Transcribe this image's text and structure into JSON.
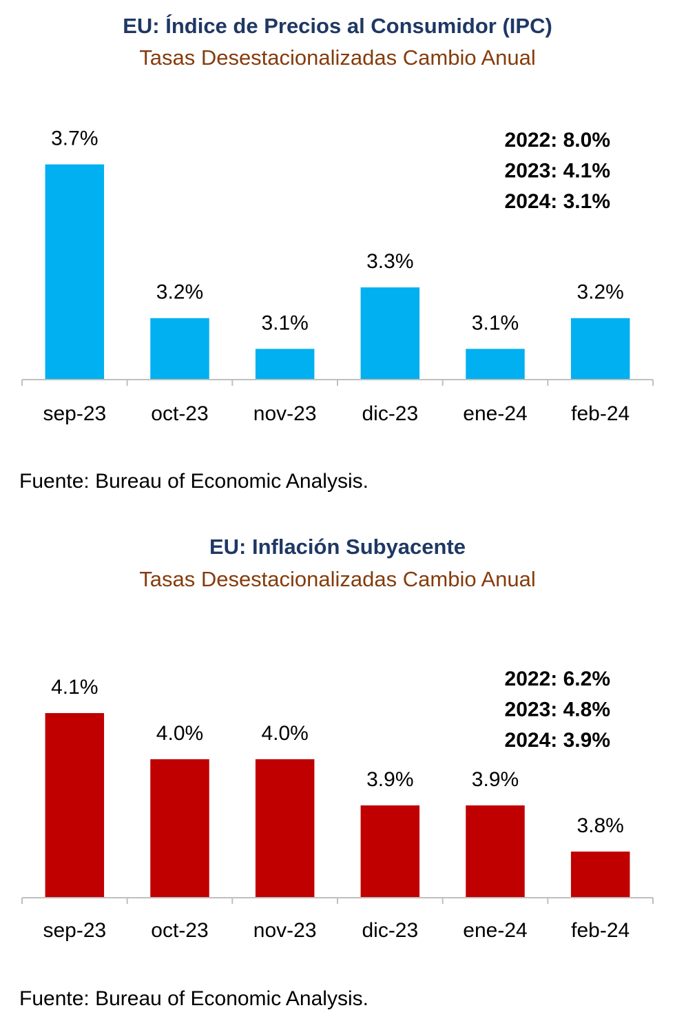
{
  "chart_data": [
    {
      "type": "bar",
      "title": "EU: Índice de Precios al Consumidor (IPC)",
      "subtitle": "Tasas Desestacionalizadas Cambio Anual",
      "categories": [
        "sep-23",
        "oct-23",
        "nov-23",
        "dic-23",
        "ene-24",
        "feb-24"
      ],
      "values": [
        3.7,
        3.2,
        3.1,
        3.3,
        3.1,
        3.2
      ],
      "value_labels": [
        "3.7%",
        "3.2%",
        "3.1%",
        "3.3%",
        "3.1%",
        "3.2%"
      ],
      "color": "#00b0f0",
      "ylim": [
        3.0,
        3.8
      ],
      "annotations": [
        "2022: 8.0%",
        "2023: 4.1%",
        "2024: 3.1%"
      ],
      "source": "Fuente:  Bureau of Economic Analysis."
    },
    {
      "type": "bar",
      "title": "EU: Inflación Subyacente",
      "subtitle": "Tasas Desestacionalizadas Cambio Anual",
      "categories": [
        "sep-23",
        "oct-23",
        "nov-23",
        "dic-23",
        "ene-24",
        "feb-24"
      ],
      "values": [
        4.1,
        4.0,
        4.0,
        3.9,
        3.9,
        3.8
      ],
      "value_labels": [
        "4.1%",
        "4.0%",
        "4.0%",
        "3.9%",
        "3.9%",
        "3.8%"
      ],
      "color": "#c00000",
      "ylim": [
        3.7,
        4.2
      ],
      "annotations": [
        "2022: 6.2%",
        "2023: 4.8%",
        "2024: 3.9%"
      ],
      "source": "Fuente:  Bureau of Economic Analysis."
    }
  ]
}
